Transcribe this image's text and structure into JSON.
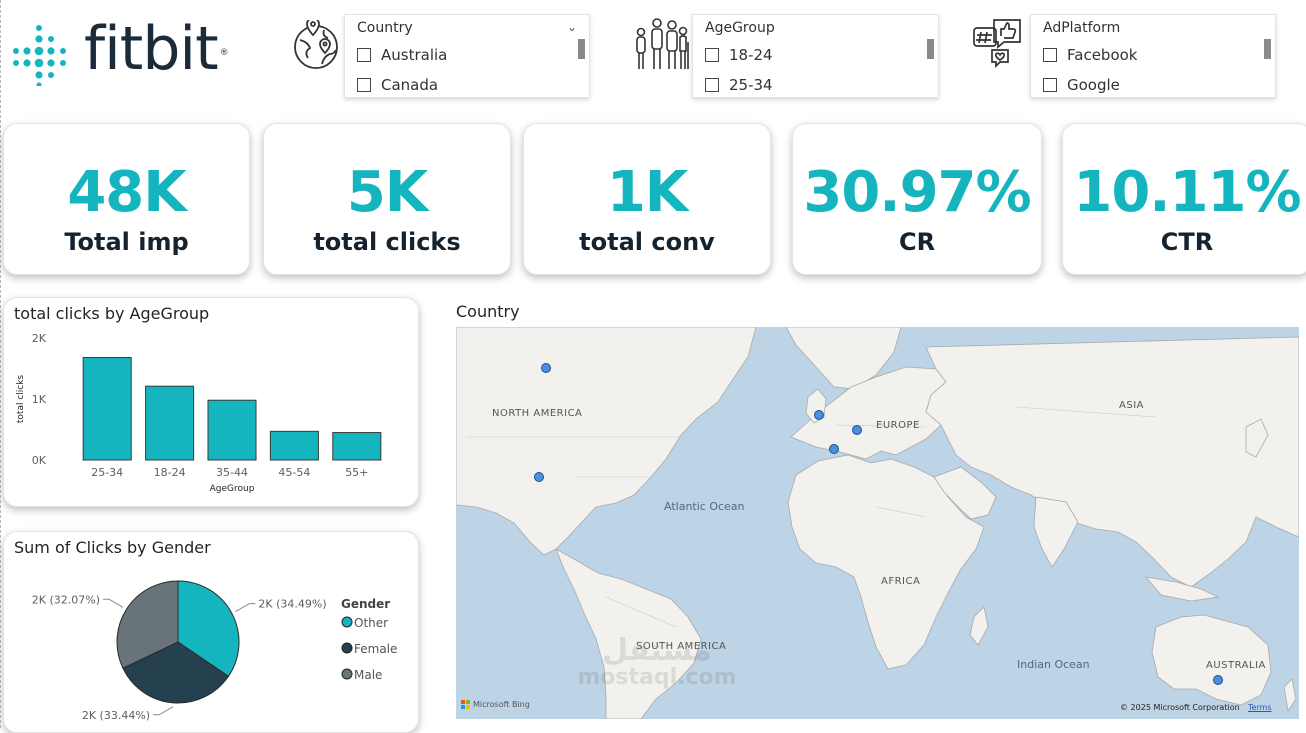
{
  "brand": {
    "name": "fitbit",
    "registered": "®",
    "accent": "#14b5be",
    "dark": "#1b2b3a"
  },
  "slicers": {
    "country": {
      "title": "Country",
      "icon": "globe-location-icon",
      "items": [
        "Australia",
        "Canada"
      ]
    },
    "agegroup": {
      "title": "AgeGroup",
      "icon": "people-age-icon",
      "items": [
        "18-24",
        "25-34"
      ]
    },
    "adplatform": {
      "title": "AdPlatform",
      "icon": "social-media-icon",
      "items": [
        "Facebook",
        "Google"
      ]
    }
  },
  "kpis": [
    {
      "value": "48K",
      "label": "Total imp"
    },
    {
      "value": "5K",
      "label": "total clicks"
    },
    {
      "value": "1K",
      "label": "total conv"
    },
    {
      "value": "30.97%",
      "label": "CR"
    },
    {
      "value": "10.11%",
      "label": "CTR"
    }
  ],
  "chart_data": [
    {
      "type": "bar",
      "title": "total clicks by AgeGroup",
      "xlabel": "AgeGroup",
      "ylabel": "total clicks",
      "categories": [
        "25-34",
        "18-24",
        "35-44",
        "45-54",
        "55+"
      ],
      "values": [
        1680,
        1210,
        980,
        470,
        450
      ],
      "ylim": [
        0,
        2000
      ],
      "yticks": [
        "0K",
        "1K",
        "2K"
      ],
      "color": "#14b5be"
    },
    {
      "type": "pie",
      "title": "Sum of Clicks by Gender",
      "legend_title": "Gender",
      "labels": [
        "Other",
        "Female",
        "Male"
      ],
      "values": [
        34.49,
        33.44,
        32.07
      ],
      "data_labels": [
        "2K (34.49%)",
        "2K (33.44%)",
        "2K (32.07%)"
      ],
      "colors": [
        "#14b5be",
        "#25414f",
        "#687479"
      ]
    }
  ],
  "map": {
    "title": "Country",
    "regions": [
      "NORTH AMERICA",
      "EUROPE",
      "ASIA",
      "AFRICA",
      "SOUTH AMERICA",
      "AUSTRALIA"
    ],
    "oceans": [
      "Atlantic Ocean",
      "Indian Ocean"
    ],
    "attribution": "© 2025 Microsoft Corporation",
    "terms": "Terms",
    "provider": "Microsoft Bing"
  },
  "watermark": {
    "arabic": "مستقل",
    "latin": "mostaql.com"
  }
}
